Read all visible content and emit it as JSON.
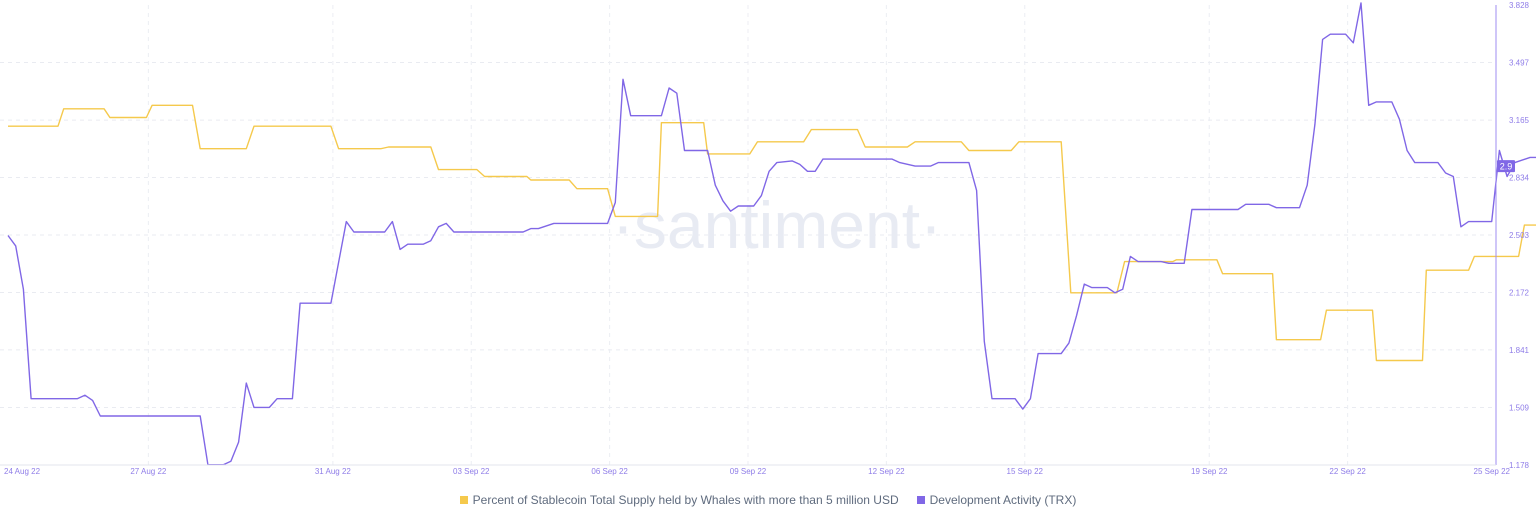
{
  "chart_data": {
    "type": "line",
    "title": "",
    "watermark": "·santiment·",
    "x_ticks": [
      "24 Aug 22",
      "27 Aug 22",
      "31 Aug 22",
      "03 Sep 22",
      "06 Sep 22",
      "09 Sep 22",
      "12 Sep 22",
      "15 Sep 22",
      "19 Sep 22",
      "22 Sep 22",
      "25 Sep 22"
    ],
    "x_range": [
      "2022-08-24",
      "2022-09-25"
    ],
    "right_axis": {
      "ticks": [
        "3.828",
        "3.497",
        "3.165",
        "2.834",
        "2.503",
        "2.172",
        "1.841",
        "1.509",
        "1.178"
      ],
      "range": [
        1.178,
        3.828
      ],
      "current_value_badge": "2.9"
    },
    "grid": true,
    "legend_position": "bottom-center",
    "series": [
      {
        "name": "Percent of Stablecoin Total Supply held by Whales with more than 5 million USD",
        "color": "#f5c94c",
        "axis": "hidden",
        "points": [
          [
            "2022-08-24T00:00",
            3.13
          ],
          [
            "2022-08-25T02:00",
            3.13
          ],
          [
            "2022-08-25T05:00",
            3.23
          ],
          [
            "2022-08-26T02:00",
            3.23
          ],
          [
            "2022-08-26T05:00",
            3.18
          ],
          [
            "2022-08-27T00:00",
            3.18
          ],
          [
            "2022-08-27T03:00",
            3.25
          ],
          [
            "2022-08-28T00:00",
            3.25
          ],
          [
            "2022-08-28T04:00",
            3.0
          ],
          [
            "2022-08-29T04:00",
            3.0
          ],
          [
            "2022-08-29T08:00",
            3.13
          ],
          [
            "2022-08-31T00:00",
            3.13
          ],
          [
            "2022-08-31T04:00",
            3.0
          ],
          [
            "2022-09-01T02:00",
            3.0
          ],
          [
            "2022-09-01T06:00",
            3.01
          ],
          [
            "2022-09-02T04:00",
            3.01
          ],
          [
            "2022-09-02T08:00",
            2.88
          ],
          [
            "2022-09-03T04:00",
            2.88
          ],
          [
            "2022-09-03T08:00",
            2.84
          ],
          [
            "2022-09-04T06:00",
            2.84
          ],
          [
            "2022-09-04T08:00",
            2.82
          ],
          [
            "2022-09-05T04:00",
            2.82
          ],
          [
            "2022-09-05T08:00",
            2.77
          ],
          [
            "2022-09-06T00:00",
            2.77
          ],
          [
            "2022-09-06T04:00",
            2.61
          ],
          [
            "2022-09-07T02:00",
            2.61
          ],
          [
            "2022-09-07T04:00",
            3.15
          ],
          [
            "2022-09-08T02:00",
            3.15
          ],
          [
            "2022-09-08T04:00",
            2.97
          ],
          [
            "2022-09-09T02:00",
            2.97
          ],
          [
            "2022-09-09T06:00",
            3.04
          ],
          [
            "2022-09-10T06:00",
            3.04
          ],
          [
            "2022-09-10T10:00",
            3.11
          ],
          [
            "2022-09-11T10:00",
            3.11
          ],
          [
            "2022-09-11T14:00",
            3.01
          ],
          [
            "2022-09-12T12:00",
            3.01
          ],
          [
            "2022-09-12T16:00",
            3.04
          ],
          [
            "2022-09-13T16:00",
            3.04
          ],
          [
            "2022-09-13T20:00",
            2.99
          ],
          [
            "2022-09-14T18:00",
            2.99
          ],
          [
            "2022-09-14T22:00",
            3.04
          ],
          [
            "2022-09-15T20:00",
            3.04
          ],
          [
            "2022-09-16T01:00",
            2.17
          ],
          [
            "2022-09-17T01:00",
            2.17
          ],
          [
            "2022-09-17T05:00",
            2.35
          ],
          [
            "2022-09-18T06:00",
            2.35
          ],
          [
            "2022-09-18T08:00",
            2.36
          ],
          [
            "2022-09-19T05:00",
            2.36
          ],
          [
            "2022-09-19T08:00",
            2.28
          ],
          [
            "2022-09-20T10:00",
            2.28
          ],
          [
            "2022-09-20T12:00",
            1.9
          ],
          [
            "2022-09-21T11:00",
            1.9
          ],
          [
            "2022-09-21T14:00",
            2.07
          ],
          [
            "2022-09-22T14:00",
            2.07
          ],
          [
            "2022-09-22T16:00",
            1.78
          ],
          [
            "2022-09-23T16:00",
            1.78
          ],
          [
            "2022-09-23T18:00",
            2.3
          ],
          [
            "2022-09-24T16:00",
            2.3
          ],
          [
            "2022-09-24T19:00",
            2.38
          ],
          [
            "2022-09-25T18:00",
            2.38
          ],
          [
            "2022-09-25T21:00",
            2.56
          ],
          [
            "2022-09-26T20:00",
            2.56
          ],
          [
            "2022-09-26T22:00",
            2.58
          ],
          [
            "2022-09-27T00:00",
            2.58
          ]
        ]
      },
      {
        "name": "Development Activity (TRX)",
        "color": "#8067e6",
        "axis": "right",
        "points": [
          [
            "2022-08-24T00:00",
            2.5
          ],
          [
            "2022-08-24T04:00",
            2.44
          ],
          [
            "2022-08-24T08:00",
            2.19
          ],
          [
            "2022-08-24T12:00",
            1.56
          ],
          [
            "2022-08-25T12:00",
            1.56
          ],
          [
            "2022-08-25T16:00",
            1.58
          ],
          [
            "2022-08-25T20:00",
            1.55
          ],
          [
            "2022-08-26T00:00",
            1.46
          ],
          [
            "2022-08-28T04:00",
            1.46
          ],
          [
            "2022-08-28T08:00",
            1.18
          ],
          [
            "2022-08-28T16:00",
            1.18
          ],
          [
            "2022-08-28T20:00",
            1.2
          ],
          [
            "2022-08-29T00:00",
            1.31
          ],
          [
            "2022-08-29T04:00",
            1.65
          ],
          [
            "2022-08-29T08:00",
            1.51
          ],
          [
            "2022-08-29T16:00",
            1.51
          ],
          [
            "2022-08-29T20:00",
            1.56
          ],
          [
            "2022-08-30T04:00",
            1.56
          ],
          [
            "2022-08-30T08:00",
            2.11
          ],
          [
            "2022-08-31T00:00",
            2.11
          ],
          [
            "2022-08-31T08:00",
            2.58
          ],
          [
            "2022-08-31T12:00",
            2.52
          ],
          [
            "2022-09-01T04:00",
            2.52
          ],
          [
            "2022-09-01T08:00",
            2.58
          ],
          [
            "2022-09-01T12:00",
            2.42
          ],
          [
            "2022-09-01T16:00",
            2.45
          ],
          [
            "2022-09-02T00:00",
            2.45
          ],
          [
            "2022-09-02T04:00",
            2.47
          ],
          [
            "2022-09-02T08:00",
            2.55
          ],
          [
            "2022-09-02T12:00",
            2.57
          ],
          [
            "2022-09-02T16:00",
            2.52
          ],
          [
            "2022-09-04T04:00",
            2.52
          ],
          [
            "2022-09-04T08:00",
            2.54
          ],
          [
            "2022-09-04T12:00",
            2.54
          ],
          [
            "2022-09-04T20:00",
            2.57
          ],
          [
            "2022-09-06T00:00",
            2.57
          ],
          [
            "2022-09-06T04:00",
            2.69
          ],
          [
            "2022-09-06T08:00",
            3.4
          ],
          [
            "2022-09-06T12:00",
            3.19
          ],
          [
            "2022-09-07T04:00",
            3.19
          ],
          [
            "2022-09-07T08:00",
            3.35
          ],
          [
            "2022-09-07T12:00",
            3.32
          ],
          [
            "2022-09-07T16:00",
            2.99
          ],
          [
            "2022-09-08T04:00",
            2.99
          ],
          [
            "2022-09-08T08:00",
            2.79
          ],
          [
            "2022-09-08T12:00",
            2.7
          ],
          [
            "2022-09-08T16:00",
            2.64
          ],
          [
            "2022-09-08T20:00",
            2.67
          ],
          [
            "2022-09-09T04:00",
            2.67
          ],
          [
            "2022-09-09T08:00",
            2.73
          ],
          [
            "2022-09-09T12:00",
            2.87
          ],
          [
            "2022-09-09T16:00",
            2.92
          ],
          [
            "2022-09-10T00:00",
            2.93
          ],
          [
            "2022-09-10T04:00",
            2.91
          ],
          [
            "2022-09-10T08:00",
            2.87
          ],
          [
            "2022-09-10T12:00",
            2.87
          ],
          [
            "2022-09-10T16:00",
            2.94
          ],
          [
            "2022-09-12T04:00",
            2.94
          ],
          [
            "2022-09-12T08:00",
            2.92
          ],
          [
            "2022-09-12T16:00",
            2.9
          ],
          [
            "2022-09-13T00:00",
            2.9
          ],
          [
            "2022-09-13T04:00",
            2.92
          ],
          [
            "2022-09-13T20:00",
            2.92
          ],
          [
            "2022-09-14T00:00",
            2.76
          ],
          [
            "2022-09-14T04:00",
            1.89
          ],
          [
            "2022-09-14T08:00",
            1.56
          ],
          [
            "2022-09-14T20:00",
            1.56
          ],
          [
            "2022-09-15T00:00",
            1.5
          ],
          [
            "2022-09-15T04:00",
            1.56
          ],
          [
            "2022-09-15T08:00",
            1.82
          ],
          [
            "2022-09-15T20:00",
            1.82
          ],
          [
            "2022-09-16T00:00",
            1.88
          ],
          [
            "2022-09-16T04:00",
            2.04
          ],
          [
            "2022-09-16T08:00",
            2.22
          ],
          [
            "2022-09-16T12:00",
            2.2
          ],
          [
            "2022-09-16T20:00",
            2.2
          ],
          [
            "2022-09-17T00:00",
            2.17
          ],
          [
            "2022-09-17T04:00",
            2.19
          ],
          [
            "2022-09-17T08:00",
            2.38
          ],
          [
            "2022-09-17T12:00",
            2.35
          ],
          [
            "2022-09-18T00:00",
            2.35
          ],
          [
            "2022-09-18T04:00",
            2.34
          ],
          [
            "2022-09-18T12:00",
            2.34
          ],
          [
            "2022-09-18T16:00",
            2.65
          ],
          [
            "2022-09-19T16:00",
            2.65
          ],
          [
            "2022-09-19T20:00",
            2.68
          ],
          [
            "2022-09-20T08:00",
            2.68
          ],
          [
            "2022-09-20T12:00",
            2.66
          ],
          [
            "2022-09-21T00:00",
            2.66
          ],
          [
            "2022-09-21T04:00",
            2.79
          ],
          [
            "2022-09-21T08:00",
            3.14
          ],
          [
            "2022-09-21T12:00",
            3.63
          ],
          [
            "2022-09-21T16:00",
            3.66
          ],
          [
            "2022-09-22T00:00",
            3.66
          ],
          [
            "2022-09-22T04:00",
            3.61
          ],
          [
            "2022-09-22T08:00",
            3.84
          ],
          [
            "2022-09-22T12:00",
            3.25
          ],
          [
            "2022-09-22T16:00",
            3.27
          ],
          [
            "2022-09-23T00:00",
            3.27
          ],
          [
            "2022-09-23T04:00",
            3.17
          ],
          [
            "2022-09-23T08:00",
            2.99
          ],
          [
            "2022-09-23T12:00",
            2.92
          ],
          [
            "2022-09-24T00:00",
            2.92
          ],
          [
            "2022-09-24T04:00",
            2.86
          ],
          [
            "2022-09-24T08:00",
            2.84
          ],
          [
            "2022-09-24T12:00",
            2.55
          ],
          [
            "2022-09-24T16:00",
            2.58
          ],
          [
            "2022-09-25T04:00",
            2.58
          ],
          [
            "2022-09-25T08:00",
            2.99
          ],
          [
            "2022-09-25T12:00",
            2.84
          ],
          [
            "2022-09-25T16:00",
            2.92
          ],
          [
            "2022-09-26T00:00",
            2.95
          ],
          [
            "2022-09-26T08:00",
            2.95
          ],
          [
            "2022-09-26T12:00",
            2.92
          ],
          [
            "2022-09-27T00:00",
            2.92
          ]
        ]
      }
    ]
  }
}
